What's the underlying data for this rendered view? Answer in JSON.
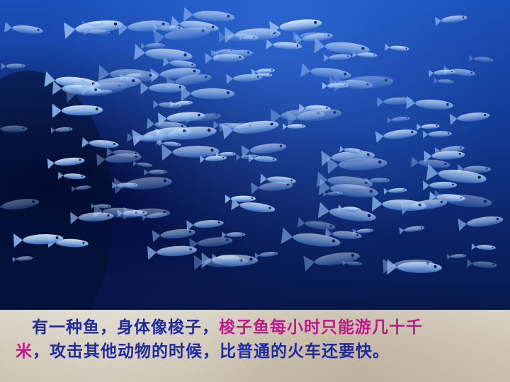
{
  "slide": {
    "caption": {
      "part1": "有一种鱼，身体像梭子，",
      "part2": "梭子鱼每小时只能游几十千",
      "part3": "米",
      "part4": "，攻击其他动物的时候，比普通的火车还要快。"
    },
    "colors": {
      "caption_text": "#1f2aa0",
      "caption_highlight": "#c0178a",
      "water_top": "#1a4fb8",
      "water_bottom": "#081a4d",
      "sand": "#d9d2c4"
    },
    "image": {
      "subject": "school-of-fish-underwater"
    }
  }
}
